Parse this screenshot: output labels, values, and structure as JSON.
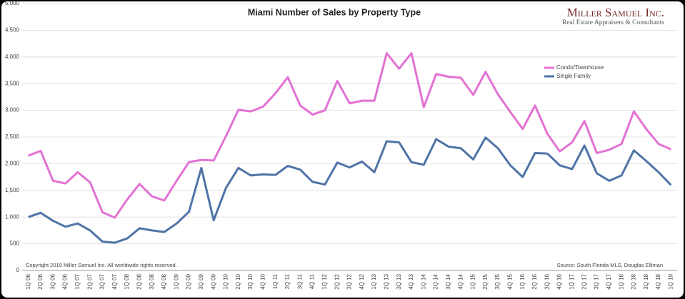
{
  "chart_data": {
    "type": "line",
    "title": "Miami Number of Sales by Property Type",
    "brand": "Miller Samuel Inc.",
    "brand_tagline": "Real Estate Appraisers & Consultants",
    "copyright": "Copyright 2019 Miller Samuel Inc.  All worldwide rights reserved.",
    "source": "Source:  South Florida MLS, Douglas Elliman",
    "categories": [
      "1Q 06",
      "2Q 06",
      "3Q 06",
      "4Q 06",
      "1Q 07",
      "2Q 07",
      "3Q 07",
      "4Q 07",
      "1Q 08",
      "2Q 08",
      "3Q 08",
      "4Q 08",
      "1Q 09",
      "2Q 09",
      "3Q 09",
      "4Q 09",
      "1Q 10",
      "2Q 10",
      "3Q 10",
      "4Q 10",
      "1Q 11",
      "2Q 11",
      "3Q 11",
      "4Q 11",
      "1Q 12",
      "2Q 12",
      "3Q 12",
      "4Q 12",
      "1Q 13",
      "2Q 13",
      "3Q 13",
      "4Q 13",
      "1Q 14",
      "2Q 14",
      "3Q 14",
      "4Q 14",
      "1Q 15",
      "2Q 15",
      "3Q 15",
      "4Q 15",
      "1Q 16",
      "2Q 16",
      "3Q 16",
      "4Q 16",
      "1Q 17",
      "2Q 17",
      "3Q 17",
      "4Q 17",
      "1Q 18",
      "2Q 18",
      "3Q 18",
      "4Q 18",
      "1Q 19"
    ],
    "series": [
      {
        "name": "Condo/Townhouse",
        "color": "#e272d3",
        "values": [
          2150,
          2240,
          1680,
          1630,
          1840,
          1650,
          1090,
          990,
          1330,
          1620,
          1390,
          1310,
          1680,
          2030,
          2070,
          2060,
          2520,
          3010,
          2980,
          3070,
          3320,
          3620,
          3090,
          2920,
          3000,
          3550,
          3130,
          3180,
          3180,
          4070,
          3780,
          4070,
          3060,
          3680,
          3630,
          3610,
          3290,
          3720,
          3300,
          2970,
          2650,
          3090,
          2560,
          2230,
          2400,
          2800,
          2200,
          2260,
          2370,
          2980,
          2650,
          2370,
          2270
        ]
      },
      {
        "name": "Single Family",
        "color": "#4f74a6",
        "values": [
          1000,
          1080,
          930,
          820,
          880,
          750,
          540,
          520,
          600,
          790,
          750,
          720,
          880,
          1100,
          1920,
          940,
          1550,
          1920,
          1780,
          1800,
          1790,
          1960,
          1890,
          1660,
          1610,
          2020,
          1930,
          2040,
          1840,
          2420,
          2400,
          2030,
          1980,
          2460,
          2320,
          2290,
          2080,
          2490,
          2290,
          1970,
          1750,
          2200,
          2190,
          1970,
          1900,
          2340,
          1820,
          1680,
          1780,
          2250,
          2050,
          1840,
          1600
        ]
      }
    ],
    "ylim": [
      0,
      5000
    ],
    "yticks": [
      0,
      500,
      {
        "value": 1000,
        "label": "1,000"
      },
      {
        "value": 1500,
        "label": "1,500"
      },
      {
        "value": 2000,
        "label": "2,000"
      },
      {
        "value": 2500,
        "label": "2,500"
      },
      {
        "value": 3000,
        "label": "3,000"
      },
      {
        "value": 3500,
        "label": "3,500"
      },
      {
        "value": 4000,
        "label": "4,000"
      },
      {
        "value": 4500,
        "label": "4,500"
      },
      {
        "value": 5000,
        "label": "5,000"
      }
    ],
    "grid": true
  }
}
